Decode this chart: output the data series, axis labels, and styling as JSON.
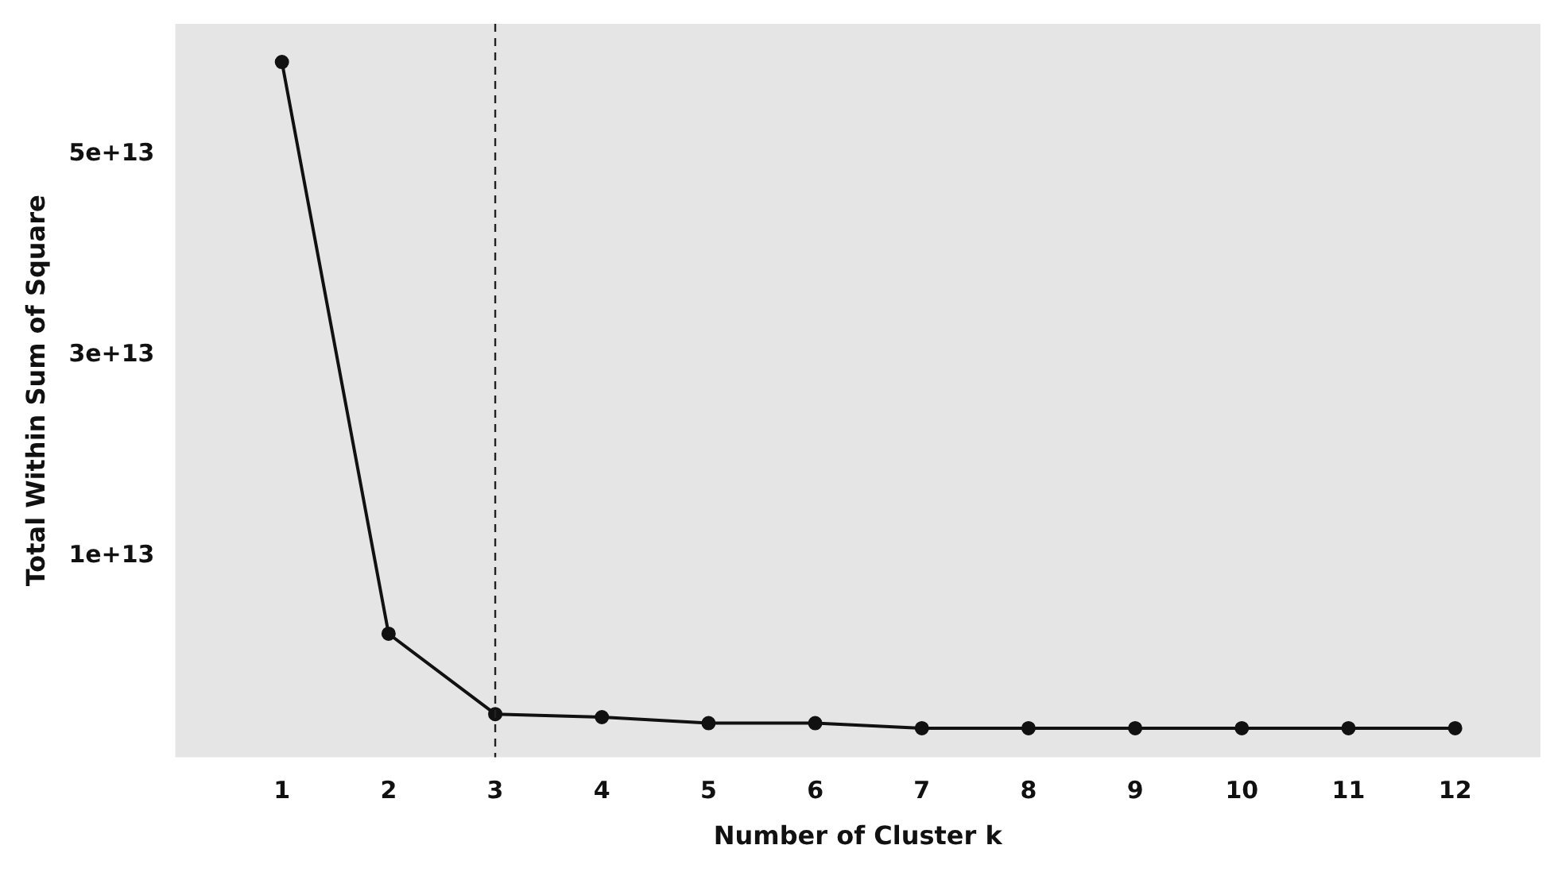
{
  "chart_data": {
    "type": "line",
    "xlabel": "Number of Cluster k",
    "ylabel": "Total Within Sum of Square",
    "x": [
      1,
      2,
      3,
      4,
      5,
      6,
      7,
      8,
      9,
      10,
      11,
      12
    ],
    "series": [
      {
        "color": "#111111",
        "values": [
          59200000000000.0,
          2300000000000.0,
          -5700000000000.0,
          -6000000000000.0,
          -6600000000000.0,
          -6600000000000.0,
          -7100000000000.0,
          -7100000000000.0,
          -7100000000000.0,
          -7100000000000.0,
          -7100000000000.0,
          -7100000000000.0
        ]
      }
    ],
    "xlim": [
      0,
      12.8
    ],
    "xticks": [
      1,
      2,
      3,
      4,
      5,
      6,
      7,
      8,
      9,
      10,
      11,
      12
    ],
    "ylim": [
      -10000000000000.0,
      63000000000000.0
    ],
    "yticks": [
      {
        "value": 10000000000000.0,
        "label": "1e+13"
      },
      {
        "value": 30000000000000.0,
        "label": "3e+13"
      },
      {
        "value": 50000000000000.0,
        "label": "5e+13"
      }
    ],
    "ref_lines": [
      {
        "axis": "x",
        "value": 3,
        "color": "#222222",
        "line_style": "dashed"
      }
    ],
    "grid": false,
    "legend": false,
    "marker": "circle",
    "line_style": "solid"
  }
}
